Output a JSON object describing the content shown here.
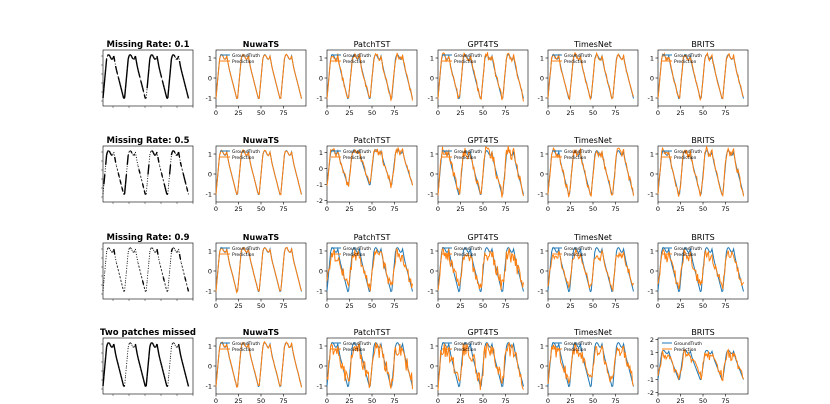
{
  "figure": {
    "row_titles": [
      "Missing Rate: 0.1",
      "Missing Rate: 0.5",
      "Missing Rate: 0.9",
      "Two patches missed"
    ],
    "model_titles": [
      "NuwaTS",
      "PatchTST",
      "GPT4TS",
      "TimesNet",
      "BRITS"
    ],
    "bold_titles": [
      "NuwaTS"
    ],
    "legend": [
      "GroundTruth",
      "Prediction"
    ],
    "colors": {
      "groundtruth": "#1f77b4",
      "prediction": "#ff7f0e",
      "input": "#000000",
      "axis": "#000000"
    },
    "x_ticks": [
      "0",
      "25",
      "50",
      "75"
    ],
    "y_ticks_default": [
      "1",
      "0",
      "-1"
    ],
    "y_ticks_extra": {
      "PatchTST|Missing Rate: 0.5": [
        "1",
        "0",
        "-1",
        "-2"
      ],
      "BRITS|Two patches missed": [
        "2",
        "1",
        "0",
        "-1",
        "-2"
      ]
    }
  },
  "chart_data": {
    "type": "line",
    "description_of_series": "Each prediction panel shows a periodic ground-truth signal (4 cycles over ~96 steps, range about -1.2 to 1.2) and the model's imputed prediction. Left column shows the observed input with missing points as dotted segments.",
    "x": [
      0,
      100
    ],
    "ylim": [
      -1.4,
      1.4
    ],
    "period": 24,
    "missing_rates": [
      0.1,
      0.5,
      0.9,
      "patch"
    ],
    "models": [
      "NuwaTS",
      "PatchTST",
      "GPT4TS",
      "TimesNet",
      "BRITS"
    ]
  }
}
